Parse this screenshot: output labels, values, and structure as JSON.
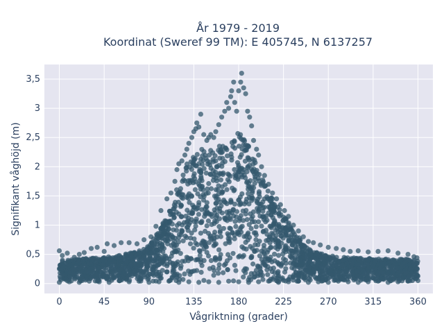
{
  "chart_data": {
    "type": "scatter",
    "title_lines": [
      "År 1979 - 2019",
      "Koordinat (Sweref 99 TM): E 405745, N 6137257"
    ],
    "xlabel": "Vågriktning (grader)",
    "ylabel": "Signifikant våghöjd (m)",
    "xlim": [
      -15,
      375
    ],
    "ylim": [
      -0.17,
      3.75
    ],
    "x_ticks": [
      {
        "value": 0,
        "label": "0"
      },
      {
        "value": 45,
        "label": "45"
      },
      {
        "value": 90,
        "label": "90"
      },
      {
        "value": 135,
        "label": "135"
      },
      {
        "value": 180,
        "label": "180"
      },
      {
        "value": 225,
        "label": "225"
      },
      {
        "value": 270,
        "label": "270"
      },
      {
        "value": 315,
        "label": "315"
      },
      {
        "value": 360,
        "label": "360"
      }
    ],
    "y_ticks": [
      {
        "value": 0,
        "label": "0"
      },
      {
        "value": 0.5,
        "label": "0,5"
      },
      {
        "value": 1,
        "label": "1"
      },
      {
        "value": 1.5,
        "label": "1,5"
      },
      {
        "value": 2,
        "label": "2"
      },
      {
        "value": 2.5,
        "label": "2,5"
      },
      {
        "value": 3,
        "label": "3"
      },
      {
        "value": 3.5,
        "label": "3,5"
      }
    ],
    "grid": true,
    "background_color": "#e5e5f0",
    "marker_color": "#34586e",
    "series": [
      {
        "points": [
          [
            0,
            0.56
          ],
          [
            3,
            0.48
          ],
          [
            8,
            0.52
          ],
          [
            15,
            0.45
          ],
          [
            20,
            0.5
          ],
          [
            25,
            0.53
          ],
          [
            32,
            0.6
          ],
          [
            38,
            0.62
          ],
          [
            45,
            0.55
          ],
          [
            48,
            0.68
          ],
          [
            55,
            0.65
          ],
          [
            62,
            0.7
          ],
          [
            70,
            0.7
          ],
          [
            78,
            0.68
          ],
          [
            85,
            0.75
          ],
          [
            92,
            0.8
          ],
          [
            97,
            0.98
          ],
          [
            102,
            1.25
          ],
          [
            108,
            1.45
          ],
          [
            112,
            1.55
          ],
          [
            116,
            1.75
          ],
          [
            118,
            1.95
          ],
          [
            120,
            2.05
          ],
          [
            123,
            2.1
          ],
          [
            126,
            2.2
          ],
          [
            128,
            2.3
          ],
          [
            130,
            2.4
          ],
          [
            133,
            2.5
          ],
          [
            135,
            2.6
          ],
          [
            137,
            2.65
          ],
          [
            138,
            2.75
          ],
          [
            140,
            2.68
          ],
          [
            142,
            2.9
          ],
          [
            145,
            2.55
          ],
          [
            148,
            2.45
          ],
          [
            150,
            2.5
          ],
          [
            152,
            2.55
          ],
          [
            155,
            2.5
          ],
          [
            157,
            2.6
          ],
          [
            160,
            2.72
          ],
          [
            163,
            2.85
          ],
          [
            166,
            2.95
          ],
          [
            168,
            3.1
          ],
          [
            170,
            3.0
          ],
          [
            172,
            3.2
          ],
          [
            173,
            3.3
          ],
          [
            175,
            3.45
          ],
          [
            176,
            3.1
          ],
          [
            178,
            2.95
          ],
          [
            180,
            3.3
          ],
          [
            182,
            3.45
          ],
          [
            183,
            3.6
          ],
          [
            185,
            3.35
          ],
          [
            187,
            3.25
          ],
          [
            189,
            2.95
          ],
          [
            191,
            2.85
          ],
          [
            193,
            2.7
          ],
          [
            195,
            2.45
          ],
          [
            198,
            2.3
          ],
          [
            200,
            2.2
          ],
          [
            203,
            2.0
          ],
          [
            206,
            1.85
          ],
          [
            210,
            1.7
          ],
          [
            214,
            1.55
          ],
          [
            218,
            1.45
          ],
          [
            222,
            1.35
          ],
          [
            226,
            1.25
          ],
          [
            230,
            1.15
          ],
          [
            235,
            1.0
          ],
          [
            240,
            0.9
          ],
          [
            245,
            0.8
          ],
          [
            250,
            0.72
          ],
          [
            255,
            0.7
          ],
          [
            262,
            0.66
          ],
          [
            270,
            0.62
          ],
          [
            278,
            0.6
          ],
          [
            285,
            0.58
          ],
          [
            292,
            0.55
          ],
          [
            300,
            0.56
          ],
          [
            310,
            0.54
          ],
          [
            320,
            0.55
          ],
          [
            330,
            0.56
          ],
          [
            340,
            0.52
          ],
          [
            350,
            0.5
          ],
          [
            356,
            0.46
          ],
          [
            359,
            0.44
          ],
          [
            0,
            0.02
          ],
          [
            10,
            0.03
          ],
          [
            20,
            0.02
          ],
          [
            30,
            0.04
          ],
          [
            40,
            0.03
          ],
          [
            50,
            0.02
          ],
          [
            60,
            0.05
          ],
          [
            70,
            0.03
          ],
          [
            80,
            0.04
          ],
          [
            90,
            0.02
          ],
          [
            100,
            0.03
          ],
          [
            110,
            0.04
          ],
          [
            120,
            0.02
          ],
          [
            130,
            0.03
          ],
          [
            140,
            0.02
          ],
          [
            150,
            0.03
          ],
          [
            160,
            0.02
          ],
          [
            170,
            0.04
          ],
          [
            180,
            0.03
          ],
          [
            190,
            0.02
          ],
          [
            200,
            0.03
          ],
          [
            210,
            0.04
          ],
          [
            220,
            0.02
          ],
          [
            230,
            0.03
          ],
          [
            240,
            0.04
          ],
          [
            250,
            0.02
          ],
          [
            260,
            0.03
          ],
          [
            270,
            0.02
          ],
          [
            280,
            0.04
          ],
          [
            290,
            0.03
          ],
          [
            300,
            0.02
          ],
          [
            310,
            0.03
          ],
          [
            320,
            0.04
          ],
          [
            330,
            0.02
          ],
          [
            340,
            0.03
          ],
          [
            350,
            0.04
          ],
          [
            360,
            0.05
          ]
        ],
        "density_profile": [
          [
            0,
            0.05,
            0.42
          ],
          [
            10,
            0.04,
            0.4
          ],
          [
            20,
            0.04,
            0.42
          ],
          [
            30,
            0.04,
            0.44
          ],
          [
            40,
            0.04,
            0.44
          ],
          [
            50,
            0.04,
            0.46
          ],
          [
            60,
            0.04,
            0.48
          ],
          [
            70,
            0.04,
            0.52
          ],
          [
            80,
            0.04,
            0.56
          ],
          [
            90,
            0.03,
            0.65
          ],
          [
            100,
            0.03,
            0.9
          ],
          [
            110,
            0.03,
            1.25
          ],
          [
            120,
            0.03,
            1.75
          ],
          [
            130,
            0.03,
            2.15
          ],
          [
            140,
            0.03,
            2.3
          ],
          [
            150,
            0.03,
            2.3
          ],
          [
            160,
            0.03,
            2.35
          ],
          [
            170,
            0.03,
            2.45
          ],
          [
            180,
            0.03,
            2.6
          ],
          [
            190,
            0.03,
            2.35
          ],
          [
            200,
            0.03,
            1.95
          ],
          [
            210,
            0.03,
            1.6
          ],
          [
            220,
            0.03,
            1.3
          ],
          [
            230,
            0.03,
            1.05
          ],
          [
            240,
            0.03,
            0.8
          ],
          [
            250,
            0.04,
            0.6
          ],
          [
            260,
            0.04,
            0.52
          ],
          [
            270,
            0.04,
            0.48
          ],
          [
            280,
            0.04,
            0.46
          ],
          [
            290,
            0.04,
            0.44
          ],
          [
            300,
            0.04,
            0.44
          ],
          [
            310,
            0.04,
            0.43
          ],
          [
            320,
            0.04,
            0.42
          ],
          [
            330,
            0.04,
            0.42
          ],
          [
            340,
            0.04,
            0.42
          ],
          [
            350,
            0.04,
            0.42
          ],
          [
            360,
            0.05,
            0.4
          ]
        ]
      }
    ]
  }
}
